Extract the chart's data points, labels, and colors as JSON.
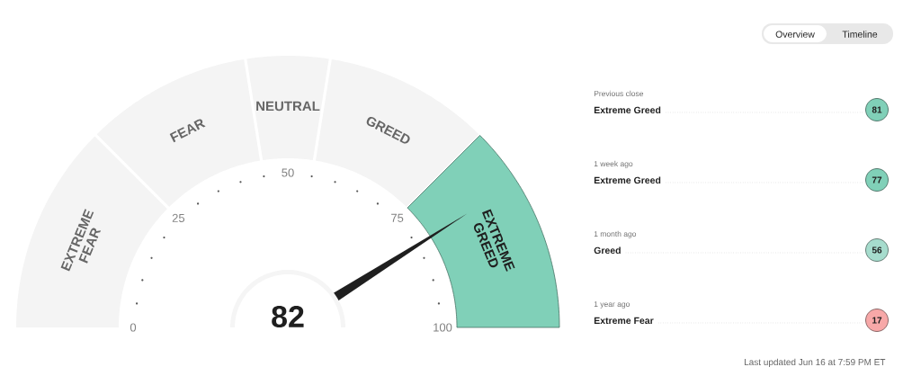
{
  "chart_data": [
    {
      "type": "donut",
      "categories": [
        "EXTREME FEAR",
        "FEAR",
        "NEUTRAL",
        "GREED",
        "EXTREME GREED"
      ],
      "values": [
        25,
        20,
        10,
        20,
        25
      ],
      "colors": [
        "#f4f4f4",
        "#f4f4f4",
        "#f4f4f4",
        "#f4f4f4",
        "#80d0b8"
      ],
      "needle": "EXTREME GREED",
      "annotations": [
        "0",
        "25",
        "50",
        "75",
        "100",
        "82"
      ]
    },
    {
      "type": "other",
      "categories": [
        "Previous close",
        "1 week ago",
        "1 month ago",
        "1 year ago"
      ],
      "y_categories": [
        "Extreme Greed",
        "Extreme Greed",
        "Greed",
        "Extreme Fear"
      ],
      "values": [
        81,
        77,
        56,
        17
      ],
      "colors": [
        "#80d0b8",
        "#80d0b8",
        "#a6dccd",
        "#f7a8a8"
      ],
      "data_labels": true,
      "annotations": [
        "Overview",
        "Timeline",
        "Last updated Jun 16 at 7:59 PM ET"
      ]
    }
  ]
}
